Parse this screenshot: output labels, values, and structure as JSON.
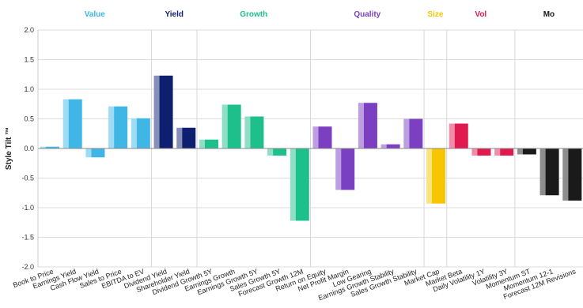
{
  "chart_data": {
    "type": "bar",
    "ylabel": "Style Tilt ™",
    "ylim": [
      -2.0,
      2.0
    ],
    "yticks": [
      "2.0",
      "1.5",
      "1.0",
      "0.5",
      "0.0",
      "-0.5",
      "-1.0",
      "-1.5",
      "-2.0"
    ],
    "grid": true,
    "groups": [
      {
        "name": "Value",
        "color": "#3fb6e6",
        "start": 0,
        "count": 5
      },
      {
        "name": "Yield",
        "color": "#0d1f6e",
        "start": 5,
        "count": 2
      },
      {
        "name": "Growth",
        "color": "#1dbf8a",
        "start": 7,
        "count": 5
      },
      {
        "name": "Quality",
        "color": "#7b3fc2",
        "start": 12,
        "count": 5
      },
      {
        "name": "Size",
        "color": "#f7c600",
        "start": 17,
        "count": 1
      },
      {
        "name": "Vol",
        "color": "#e01a4f",
        "start": 18,
        "count": 3
      },
      {
        "name": "Mo",
        "color": "#1a1a1a",
        "start": 21,
        "count": 3
      }
    ],
    "categories": [
      "Book to Price",
      "Earnings Yield",
      "Cash Flow Yield",
      "Sales to Price",
      "EBITDA to EV",
      "Dividend Yield",
      "Shareholder Yield",
      "Dividend Growth 5Y",
      "Earnings Growth",
      "Earnings Growth 5Y",
      "Sales Growth 5Y",
      "Forecast Growth 12M",
      "Return on Equity",
      "Net Profit Margin",
      "Low Gearing",
      "Earnings Growth Stability",
      "Sales Growth Stability",
      "Market Cap",
      "Market Beta",
      "Daily Volatility 1Y",
      "Volatility 3Y",
      "Momentum ST",
      "Momentum 12-1",
      "Forecast 12M Revisions"
    ],
    "values": [
      0.03,
      0.83,
      -0.15,
      0.71,
      0.51,
      1.23,
      0.35,
      0.15,
      0.74,
      0.54,
      -0.12,
      -1.22,
      0.37,
      -0.7,
      0.77,
      0.07,
      0.5,
      -0.93,
      0.42,
      -0.12,
      -0.12,
      -0.1,
      -0.79,
      -0.88
    ]
  }
}
